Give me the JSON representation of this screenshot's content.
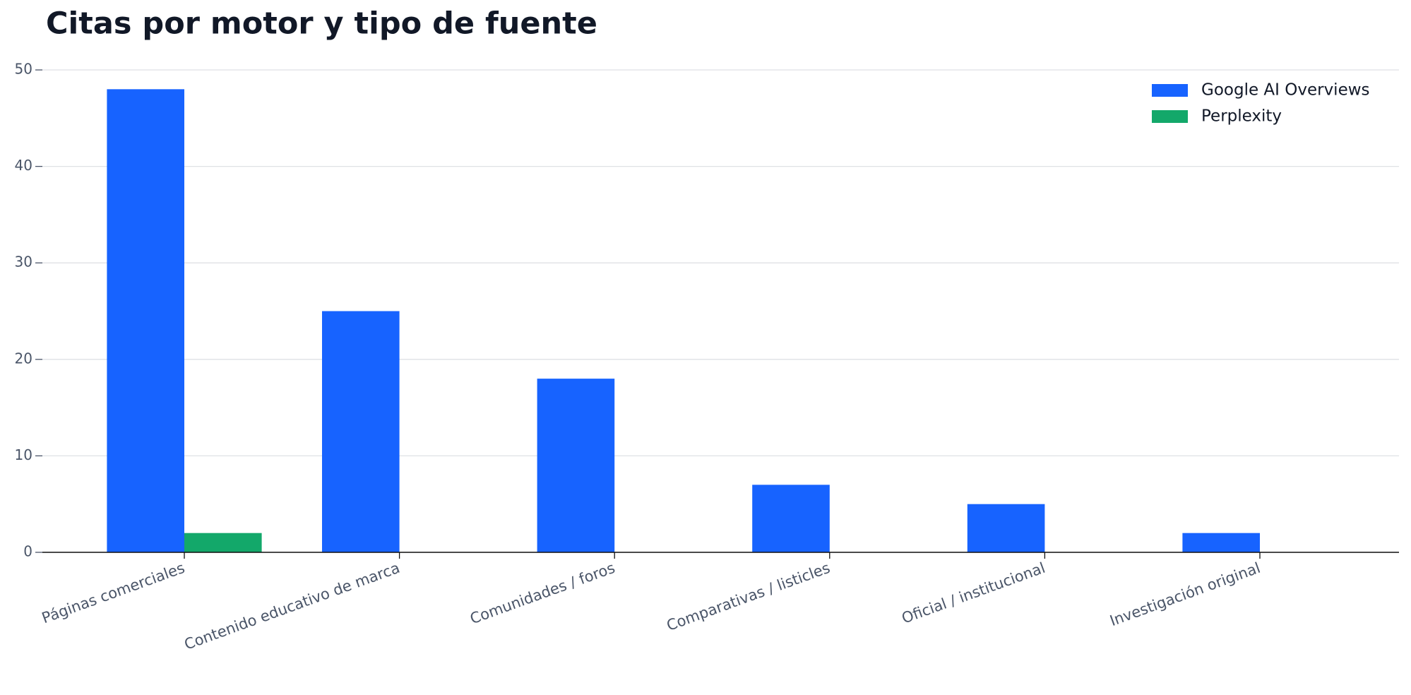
{
  "chart_data": {
    "type": "bar",
    "title": "Citas por motor y tipo de fuente",
    "categories": [
      "Páginas comerciales",
      "Contenido educativo de marca",
      "Comunidades / foros",
      "Comparativas / listicles",
      "Oficial / institucional",
      "Investigación original"
    ],
    "series": [
      {
        "name": "Google AI Overviews",
        "color": "#1763ff",
        "values": [
          48,
          25,
          18,
          7,
          5,
          2
        ]
      },
      {
        "name": "Perplexity",
        "color": "#13a86a",
        "values": [
          2,
          0,
          0,
          0,
          0,
          0
        ]
      }
    ],
    "ylim": [
      0,
      50
    ],
    "yticks": [
      0,
      10,
      20,
      30,
      40,
      50
    ],
    "grid": true,
    "legend": "upper right"
  }
}
